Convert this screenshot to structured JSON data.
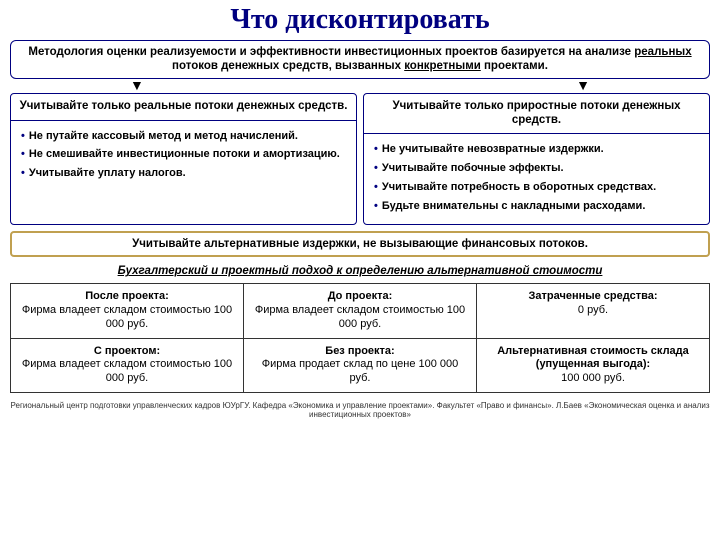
{
  "title": "Что дисконтировать",
  "intro": {
    "pre": "Методология оценки реализуемости и эффективности инвестиционных проектов базируется на анализе ",
    "u1": "реальных",
    "mid": " потоков денежных средств, вызванных ",
    "u2": "конкретными",
    "post": " проектами."
  },
  "left": {
    "head": "Учитывайте только реальные потоки денежных средств.",
    "items": [
      "Не путайте кассовый метод и метод начислений.",
      "Не смешивайте инвестиционные потоки и амортизацию.",
      "Учитывайте уплату налогов."
    ]
  },
  "right": {
    "head": "Учитывайте только приростные потоки денежных средств.",
    "items": [
      "Не учитывайте невозвратные издержки.",
      "Учитывайте побочные эффекты.",
      "Учитывайте потребность в оборотных средствах.",
      "Будьте внимательны с накладными расходами."
    ]
  },
  "altbox": "Учитывайте альтернативные издержки, не вызывающие финансовых потоков.",
  "subhead": "Бухгалтерский и проектный подход к определению альтернативной стоимости",
  "table": {
    "r1c1h": "После проекта:",
    "r1c1b": "Фирма владеет складом стоимостью 100 000 руб.",
    "r1c2h": "До проекта:",
    "r1c2b": "Фирма владеет складом стоимостью 100 000 руб.",
    "r1c3h": "Затраченные средства:",
    "r1c3b": "0 руб.",
    "r2c1h": "С проектом:",
    "r2c1b": "Фирма владеет складом стоимостью 100 000 руб.",
    "r2c2h": "Без проекта:",
    "r2c2b": "Фирма продает склад по цене 100 000 руб.",
    "r2c3h": "Альтернативная стоимость склада",
    "r2c3m": "(упущенная выгода):",
    "r2c3b": "100 000 руб."
  },
  "footer": "Региональный центр подготовки управленческих кадров ЮУрГУ. Кафедра «Экономика и управление проектами». Факультет «Право и финансы». Л.Баев «Экономическая оценка и анализ инвестиционных проектов»"
}
